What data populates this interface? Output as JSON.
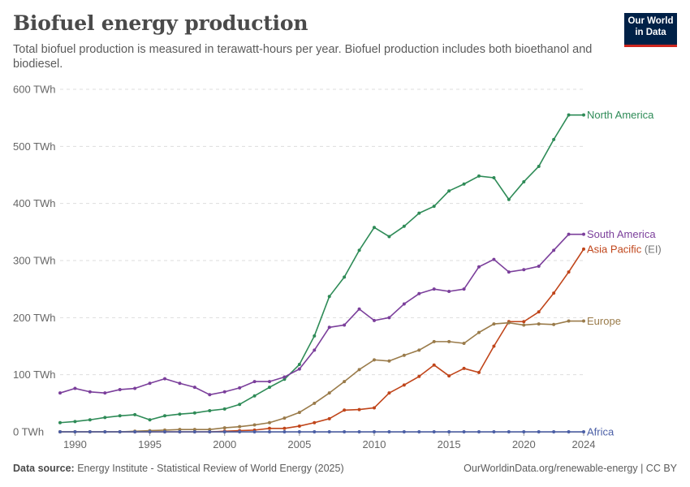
{
  "header": {
    "title": "Biofuel energy production",
    "subtitle": "Total biofuel production is measured in terawatt-hours per year. Biofuel production includes both bioethanol and biodiesel.",
    "logo_line1": "Our World",
    "logo_line2": "in Data"
  },
  "footer": {
    "source_label": "Data source:",
    "source_text": "Energy Institute - Statistical Review of World Energy (2025)",
    "url_text": "OurWorldinData.org/renewable-energy | CC BY"
  },
  "chart_data": {
    "type": "line",
    "title": "Biofuel energy production",
    "xlabel": "",
    "ylabel": "",
    "ylim": [
      0,
      600
    ],
    "xlim": [
      1989,
      2024
    ],
    "y_ticks": [
      0,
      100,
      200,
      300,
      400,
      500,
      600
    ],
    "y_tick_labels": [
      "0 TWh",
      "100 TWh",
      "200 TWh",
      "300 TWh",
      "400 TWh",
      "500 TWh",
      "600 TWh"
    ],
    "x_ticks": [
      1990,
      1995,
      2000,
      2005,
      2010,
      2015,
      2020,
      2024
    ],
    "x_tick_labels": [
      "1990",
      "1995",
      "2000",
      "2005",
      "2010",
      "2015",
      "2020",
      "2024"
    ],
    "grid": "horizontal dashed",
    "legend": "right, at line ends",
    "x": [
      1989,
      1990,
      1991,
      1992,
      1993,
      1994,
      1995,
      1996,
      1997,
      1998,
      1999,
      2000,
      2001,
      2002,
      2003,
      2004,
      2005,
      2006,
      2007,
      2008,
      2009,
      2010,
      2011,
      2012,
      2013,
      2014,
      2015,
      2016,
      2017,
      2018,
      2019,
      2020,
      2021,
      2022,
      2023,
      2024
    ],
    "series": [
      {
        "name": "North America",
        "color": "#2e8b57",
        "values": [
          16,
          18,
          21,
          25,
          28,
          30,
          21,
          28,
          31,
          33,
          37,
          40,
          48,
          63,
          78,
          92,
          118,
          168,
          237,
          271,
          318,
          358,
          342,
          360,
          383,
          395,
          422,
          434,
          448,
          445,
          407,
          438,
          465,
          512,
          555,
          555
        ]
      },
      {
        "name": "South America",
        "color": "#7b3f9b",
        "values": [
          68,
          76,
          70,
          68,
          74,
          76,
          85,
          93,
          85,
          78,
          65,
          70,
          77,
          88,
          88,
          96,
          110,
          143,
          183,
          187,
          215,
          195,
          200,
          224,
          242,
          250,
          246,
          250,
          289,
          302,
          280,
          284,
          290,
          318,
          346,
          346
        ]
      },
      {
        "name": "Asia Pacific",
        "name_suffix": "(EI)",
        "color": "#c0451a",
        "values": [
          0,
          0,
          0,
          0,
          0,
          0,
          0,
          0,
          0,
          0,
          0,
          1,
          2,
          3,
          6,
          6,
          10,
          16,
          23,
          38,
          39,
          42,
          68,
          82,
          97,
          117,
          98,
          111,
          104,
          150,
          193,
          193,
          210,
          243,
          280,
          320
        ]
      },
      {
        "name": "Europe",
        "color": "#9a7b4a",
        "values": [
          0,
          0,
          0,
          0,
          0,
          1,
          2,
          3,
          4,
          4,
          4,
          7,
          9,
          12,
          16,
          24,
          34,
          50,
          68,
          88,
          109,
          126,
          124,
          134,
          143,
          158,
          158,
          155,
          174,
          189,
          191,
          187,
          189,
          188,
          194,
          194
        ]
      },
      {
        "name": "Africa",
        "color": "#4b5fa6",
        "values": [
          0,
          0,
          0,
          0,
          0,
          0,
          0,
          0,
          0,
          0,
          0,
          0,
          0,
          0,
          0,
          0,
          0,
          0,
          0,
          0,
          0,
          0,
          0,
          0,
          0,
          0,
          0,
          0,
          0,
          0,
          0,
          0,
          0,
          0,
          0,
          0
        ]
      }
    ]
  }
}
